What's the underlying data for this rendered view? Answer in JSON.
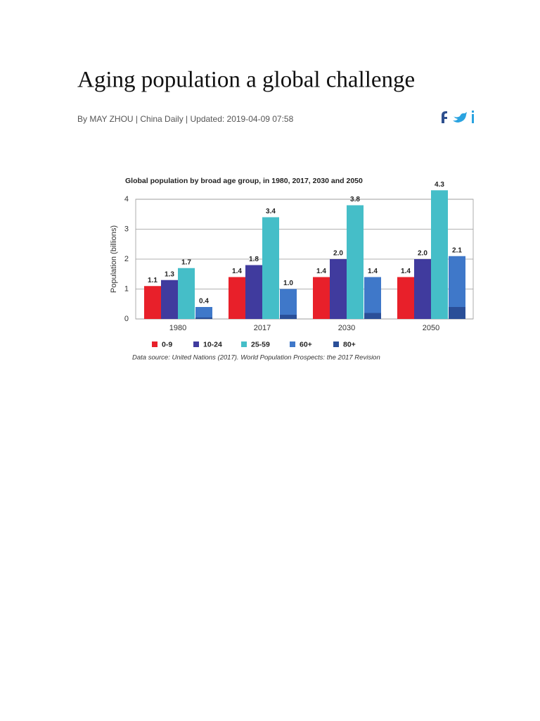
{
  "header": {
    "title": "Aging population a global challenge",
    "byline": "By MAY ZHOU | China Daily | Updated: 2019-04-09 07:58"
  },
  "chart_data": {
    "type": "bar",
    "title": "Global population by broad age group, in 1980, 2017, 2030 and 2050",
    "y_label": "Population (billions)",
    "categories": [
      "1980",
      "2017",
      "2030",
      "2050"
    ],
    "series": [
      {
        "name": "0-9",
        "color": "#e8202a",
        "values": [
          1.1,
          1.4,
          1.4,
          1.4
        ],
        "value_labels": [
          "1.1",
          "1.4",
          "1.4",
          "1.4"
        ]
      },
      {
        "name": "10-24",
        "color": "#403b9e",
        "values": [
          1.3,
          1.8,
          2.0,
          2.0
        ],
        "value_labels": [
          "1.3",
          "1.8",
          "2.0",
          "2.0"
        ]
      },
      {
        "name": "25-59",
        "color": "#45bec8",
        "values": [
          1.7,
          3.4,
          3.8,
          4.3
        ],
        "value_labels": [
          "1.7",
          "3.4",
          "3.8",
          "4.3"
        ]
      },
      {
        "name": "60+",
        "color": "#3f78c9",
        "values": [
          0.4,
          1.0,
          1.4,
          2.1
        ],
        "value_labels": [
          "0.4",
          "1.0",
          "1.4",
          "2.1"
        ]
      },
      {
        "name": "80+",
        "color": "#2a4f98",
        "values": [
          0.05,
          0.14,
          0.2,
          0.4
        ]
      }
    ],
    "ylim": [
      0,
      4
    ],
    "yticks": [
      0,
      1,
      2,
      3,
      4
    ],
    "grid": true,
    "note": "Data source: United Nations (2017). World Population Prospects: the 2017 Revision"
  }
}
